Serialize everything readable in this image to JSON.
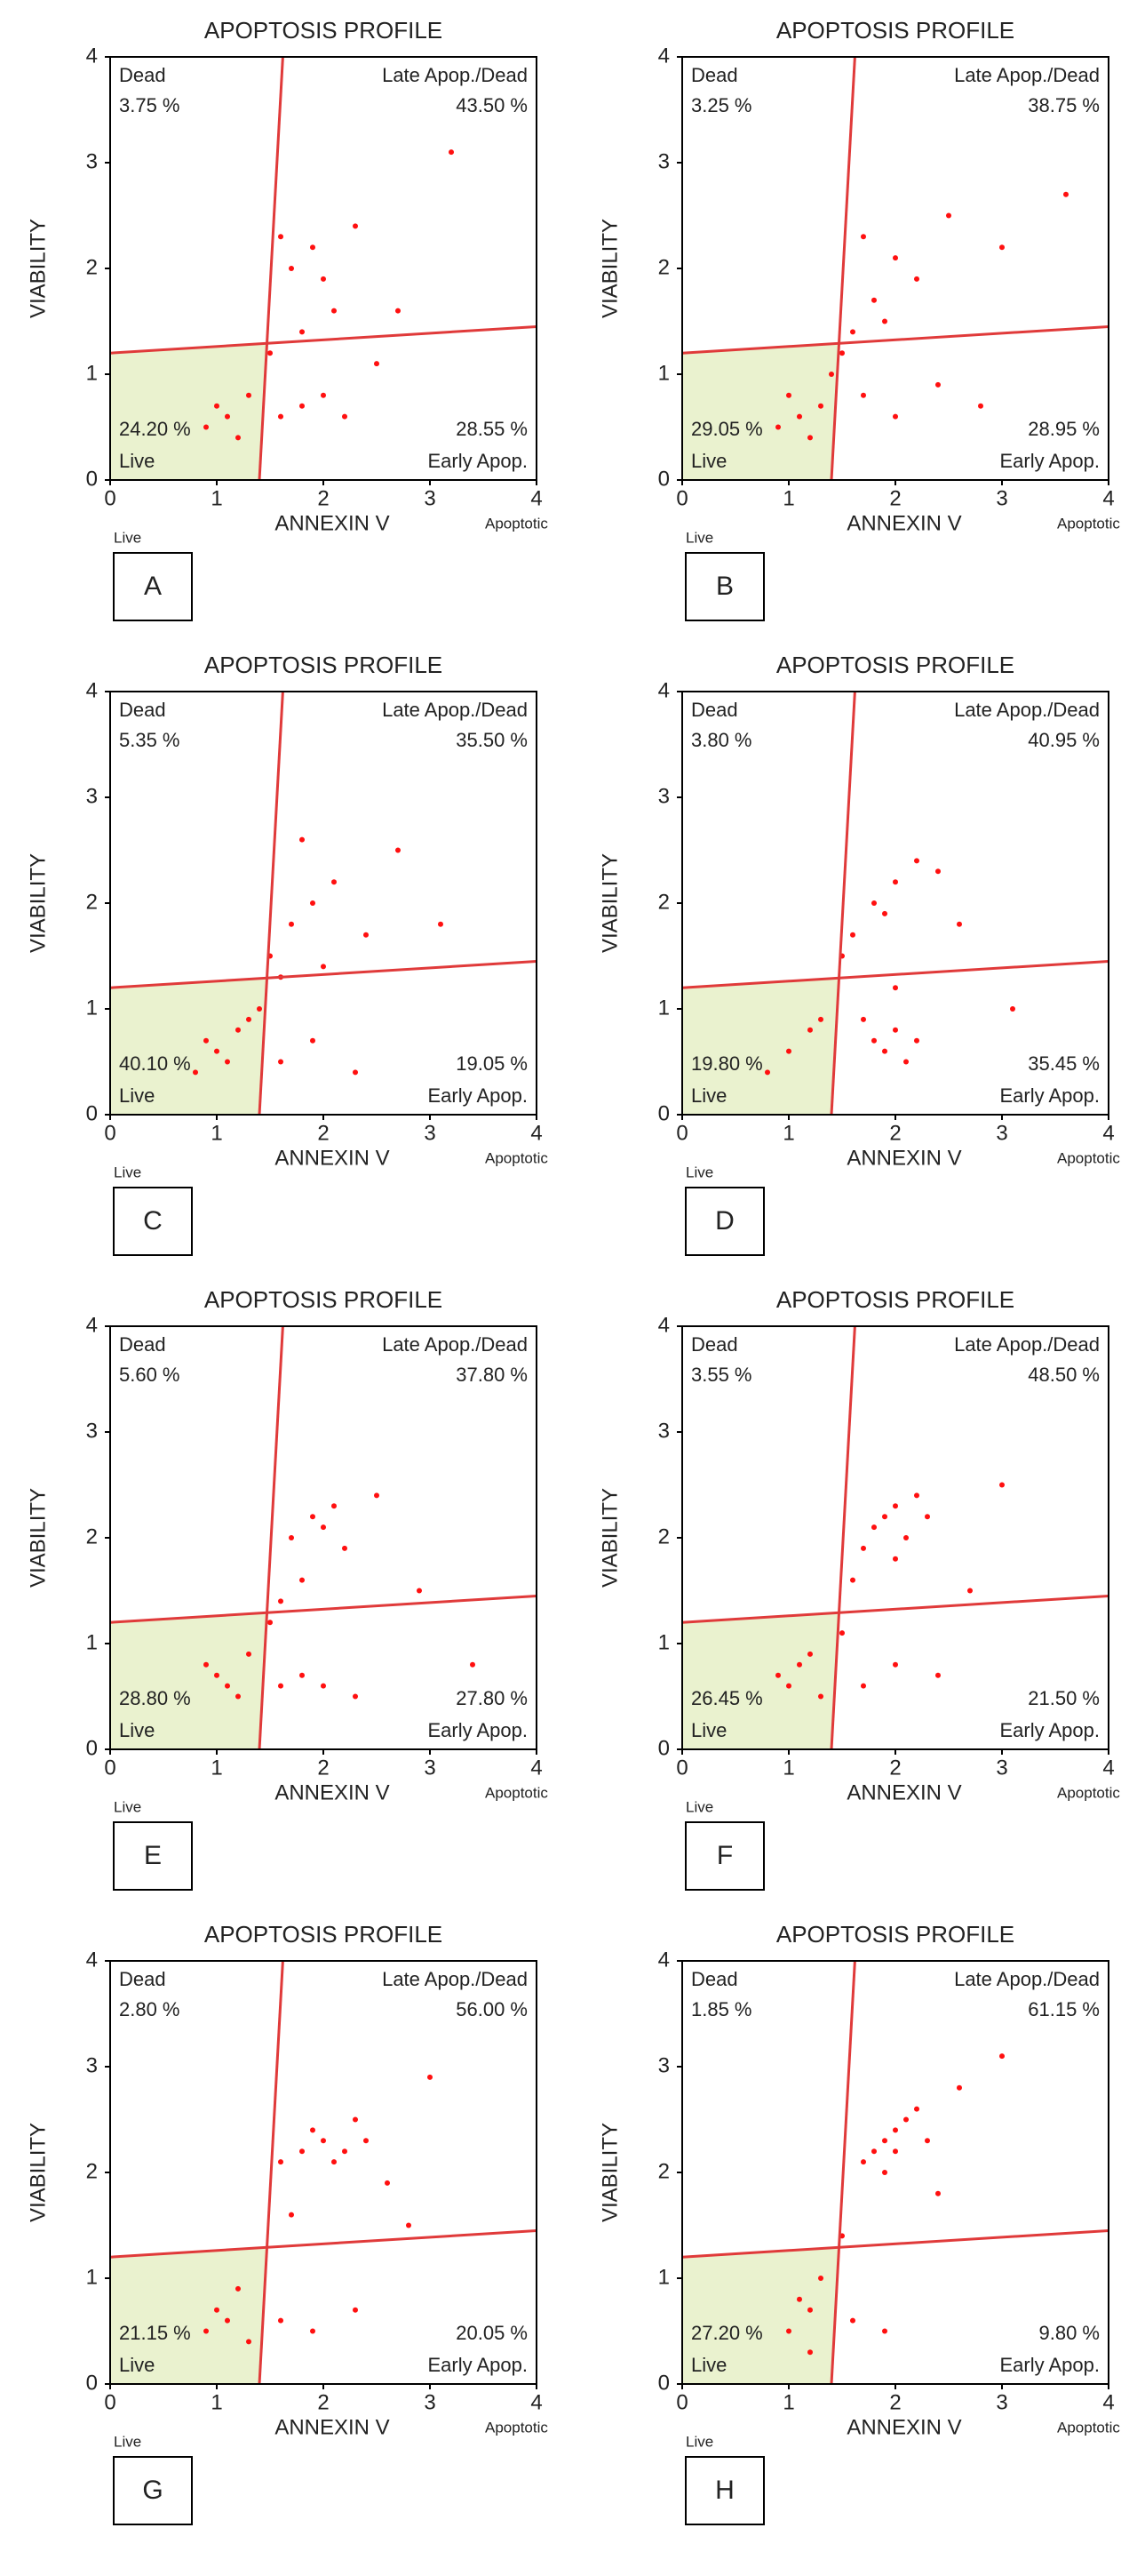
{
  "chart_data": [
    {
      "type": "scatter",
      "title": "APOPTOSIS PROFILE",
      "xlabel": "ANNEXIN V",
      "ylabel": "VIABILITY",
      "x_sublabels": [
        "Live",
        "Apoptotic"
      ],
      "panel_label": "A",
      "xlim": [
        0,
        4
      ],
      "ylim": [
        0,
        4
      ],
      "xticks": [
        0,
        1,
        2,
        3,
        4
      ],
      "yticks": [
        0,
        1,
        2,
        3,
        4
      ],
      "color": "#ff1010",
      "v_gate": [
        1.4,
        1.62
      ],
      "h_gate": [
        1.2,
        1.45
      ],
      "quadrants": [
        {
          "name": "Dead",
          "value": 3.75,
          "value_label": "3.75 %"
        },
        {
          "name": "Late Apop./Dead",
          "value": 43.5,
          "value_label": "43.50 %"
        },
        {
          "name": "Live",
          "value": 24.2,
          "value_label": "24.20 %"
        },
        {
          "name": "Early Apop.",
          "value": 28.55,
          "value_label": "28.55 %"
        }
      ],
      "x": [
        1.1,
        1.2,
        1.0,
        1.3,
        0.9,
        1.6,
        1.8,
        2.0,
        2.2,
        1.7,
        1.9,
        2.1,
        2.3,
        1.8,
        2.0,
        1.6,
        2.5,
        2.7,
        1.5,
        3.2
      ],
      "y": [
        0.6,
        0.4,
        0.7,
        0.8,
        0.5,
        0.6,
        0.7,
        0.8,
        0.6,
        2.0,
        2.2,
        1.6,
        2.4,
        1.4,
        1.9,
        2.3,
        1.1,
        1.6,
        1.2,
        3.1
      ]
    },
    {
      "type": "scatter",
      "title": "APOPTOSIS PROFILE",
      "xlabel": "ANNEXIN V",
      "ylabel": "VIABILITY",
      "x_sublabels": [
        "Live",
        "Apoptotic"
      ],
      "panel_label": "B",
      "xlim": [
        0,
        4
      ],
      "ylim": [
        0,
        4
      ],
      "xticks": [
        0,
        1,
        2,
        3,
        4
      ],
      "yticks": [
        0,
        1,
        2,
        3,
        4
      ],
      "color": "#ff1010",
      "v_gate": [
        1.4,
        1.62
      ],
      "h_gate": [
        1.2,
        1.45
      ],
      "quadrants": [
        {
          "name": "Dead",
          "value": 3.25,
          "value_label": "3.25 %"
        },
        {
          "name": "Late Apop./Dead",
          "value": 38.75,
          "value_label": "38.75 %"
        },
        {
          "name": "Live",
          "value": 29.05,
          "value_label": "29.05 %"
        },
        {
          "name": "Early Apop.",
          "value": 28.95,
          "value_label": "28.95 %"
        }
      ],
      "x": [
        1.1,
        1.2,
        1.0,
        1.3,
        0.9,
        1.7,
        2.0,
        2.4,
        2.8,
        1.6,
        1.8,
        2.0,
        1.7,
        1.9,
        2.2,
        2.5,
        1.5,
        3.0,
        1.4,
        3.6
      ],
      "y": [
        0.6,
        0.4,
        0.8,
        0.7,
        0.5,
        0.8,
        0.6,
        0.9,
        0.7,
        1.4,
        1.7,
        2.1,
        2.3,
        1.5,
        1.9,
        2.5,
        1.2,
        2.2,
        1.0,
        2.7
      ]
    },
    {
      "type": "scatter",
      "title": "APOPTOSIS PROFILE",
      "xlabel": "ANNEXIN V",
      "ylabel": "VIABILITY",
      "x_sublabels": [
        "Live",
        "Apoptotic"
      ],
      "panel_label": "C",
      "xlim": [
        0,
        4
      ],
      "ylim": [
        0,
        4
      ],
      "xticks": [
        0,
        1,
        2,
        3,
        4
      ],
      "yticks": [
        0,
        1,
        2,
        3,
        4
      ],
      "color": "#ff1010",
      "v_gate": [
        1.4,
        1.62
      ],
      "h_gate": [
        1.2,
        1.45
      ],
      "quadrants": [
        {
          "name": "Dead",
          "value": 5.35,
          "value_label": "5.35 %"
        },
        {
          "name": "Late Apop./Dead",
          "value": 35.5,
          "value_label": "35.50 %"
        },
        {
          "name": "Live",
          "value": 40.1,
          "value_label": "40.10 %"
        },
        {
          "name": "Early Apop.",
          "value": 19.05,
          "value_label": "19.05 %"
        }
      ],
      "x": [
        1.0,
        1.1,
        0.9,
        1.2,
        0.8,
        1.3,
        1.6,
        1.9,
        2.3,
        1.5,
        1.7,
        1.9,
        2.1,
        1.6,
        2.4,
        2.7,
        1.4,
        1.8,
        2.0,
        3.1
      ],
      "y": [
        0.6,
        0.5,
        0.7,
        0.8,
        0.4,
        0.9,
        0.5,
        0.7,
        0.4,
        1.5,
        1.8,
        2.0,
        2.2,
        1.3,
        1.7,
        2.5,
        1.0,
        2.6,
        1.4,
        1.8
      ]
    },
    {
      "type": "scatter",
      "title": "APOPTOSIS PROFILE",
      "xlabel": "ANNEXIN V",
      "ylabel": "VIABILITY",
      "x_sublabels": [
        "Live",
        "Apoptotic"
      ],
      "panel_label": "D",
      "xlim": [
        0,
        4
      ],
      "ylim": [
        0,
        4
      ],
      "xticks": [
        0,
        1,
        2,
        3,
        4
      ],
      "yticks": [
        0,
        1,
        2,
        3,
        4
      ],
      "color": "#ff1010",
      "v_gate": [
        1.4,
        1.62
      ],
      "h_gate": [
        1.2,
        1.45
      ],
      "quadrants": [
        {
          "name": "Dead",
          "value": 3.8,
          "value_label": "3.80 %"
        },
        {
          "name": "Late Apop./Dead",
          "value": 40.95,
          "value_label": "40.95 %"
        },
        {
          "name": "Live",
          "value": 19.8,
          "value_label": "19.80 %"
        },
        {
          "name": "Early Apop.",
          "value": 35.45,
          "value_label": "35.45 %"
        }
      ],
      "x": [
        1.0,
        1.2,
        0.8,
        1.3,
        1.8,
        1.9,
        2.0,
        2.1,
        2.2,
        1.7,
        2.0,
        1.6,
        1.8,
        2.0,
        2.2,
        2.4,
        1.5,
        2.6,
        1.9,
        3.1
      ],
      "y": [
        0.6,
        0.8,
        0.4,
        0.9,
        0.7,
        0.6,
        0.8,
        0.5,
        0.7,
        0.9,
        1.2,
        1.7,
        2.0,
        2.2,
        2.4,
        2.3,
        1.5,
        1.8,
        1.9,
        1.0
      ]
    },
    {
      "type": "scatter",
      "title": "APOPTOSIS PROFILE",
      "xlabel": "ANNEXIN V",
      "ylabel": "VIABILITY",
      "x_sublabels": [
        "Live",
        "Apoptotic"
      ],
      "panel_label": "E",
      "xlim": [
        0,
        4
      ],
      "ylim": [
        0,
        4
      ],
      "xticks": [
        0,
        1,
        2,
        3,
        4
      ],
      "yticks": [
        0,
        1,
        2,
        3,
        4
      ],
      "color": "#ff1010",
      "v_gate": [
        1.4,
        1.62
      ],
      "h_gate": [
        1.2,
        1.45
      ],
      "quadrants": [
        {
          "name": "Dead",
          "value": 5.6,
          "value_label": "5.60 %"
        },
        {
          "name": "Late Apop./Dead",
          "value": 37.8,
          "value_label": "37.80 %"
        },
        {
          "name": "Live",
          "value": 28.8,
          "value_label": "28.80 %"
        },
        {
          "name": "Early Apop.",
          "value": 27.8,
          "value_label": "27.80 %"
        }
      ],
      "x": [
        1.0,
        1.1,
        0.9,
        1.2,
        1.3,
        1.6,
        1.8,
        2.0,
        2.3,
        1.7,
        1.9,
        2.1,
        2.2,
        1.8,
        2.0,
        1.6,
        2.5,
        2.9,
        1.5,
        3.4
      ],
      "y": [
        0.7,
        0.6,
        0.8,
        0.5,
        0.9,
        0.6,
        0.7,
        0.6,
        0.5,
        2.0,
        2.2,
        2.3,
        1.9,
        1.6,
        2.1,
        1.4,
        2.4,
        1.5,
        1.2,
        0.8
      ]
    },
    {
      "type": "scatter",
      "title": "APOPTOSIS PROFILE",
      "xlabel": "ANNEXIN V",
      "ylabel": "VIABILITY",
      "x_sublabels": [
        "Live",
        "Apoptotic"
      ],
      "panel_label": "F",
      "xlim": [
        0,
        4
      ],
      "ylim": [
        0,
        4
      ],
      "xticks": [
        0,
        1,
        2,
        3,
        4
      ],
      "yticks": [
        0,
        1,
        2,
        3,
        4
      ],
      "color": "#ff1010",
      "v_gate": [
        1.4,
        1.62
      ],
      "h_gate": [
        1.2,
        1.45
      ],
      "quadrants": [
        {
          "name": "Dead",
          "value": 3.55,
          "value_label": "3.55 %"
        },
        {
          "name": "Late Apop./Dead",
          "value": 48.5,
          "value_label": "48.50 %"
        },
        {
          "name": "Live",
          "value": 26.45,
          "value_label": "26.45 %"
        },
        {
          "name": "Early Apop.",
          "value": 21.5,
          "value_label": "21.50 %"
        }
      ],
      "x": [
        0.9,
        1.1,
        1.0,
        1.2,
        1.3,
        1.7,
        2.0,
        2.4,
        1.7,
        1.8,
        1.9,
        2.0,
        2.1,
        2.2,
        2.3,
        1.6,
        2.0,
        2.7,
        3.0,
        1.5
      ],
      "y": [
        0.7,
        0.8,
        0.6,
        0.9,
        0.5,
        0.6,
        0.8,
        0.7,
        1.9,
        2.1,
        2.2,
        2.3,
        2.0,
        2.4,
        2.2,
        1.6,
        1.8,
        1.5,
        2.5,
        1.1
      ]
    },
    {
      "type": "scatter",
      "title": "APOPTOSIS PROFILE",
      "xlabel": "ANNEXIN V",
      "ylabel": "VIABILITY",
      "x_sublabels": [
        "Live",
        "Apoptotic"
      ],
      "panel_label": "G",
      "xlim": [
        0,
        4
      ],
      "ylim": [
        0,
        4
      ],
      "xticks": [
        0,
        1,
        2,
        3,
        4
      ],
      "yticks": [
        0,
        1,
        2,
        3,
        4
      ],
      "color": "#ff1010",
      "v_gate": [
        1.4,
        1.62
      ],
      "h_gate": [
        1.2,
        1.45
      ],
      "quadrants": [
        {
          "name": "Dead",
          "value": 2.8,
          "value_label": "2.80 %"
        },
        {
          "name": "Late Apop./Dead",
          "value": 56.0,
          "value_label": "56.00 %"
        },
        {
          "name": "Live",
          "value": 21.15,
          "value_label": "21.15 %"
        },
        {
          "name": "Early Apop.",
          "value": 20.05,
          "value_label": "20.05 %"
        }
      ],
      "x": [
        1.0,
        1.1,
        1.2,
        0.9,
        1.3,
        1.6,
        1.9,
        2.3,
        1.6,
        1.8,
        1.9,
        2.0,
        2.1,
        2.2,
        2.3,
        2.4,
        1.7,
        2.6,
        2.8,
        3.0
      ],
      "y": [
        0.7,
        0.6,
        0.9,
        0.5,
        0.4,
        0.6,
        0.5,
        0.7,
        2.1,
        2.2,
        2.4,
        2.3,
        2.1,
        2.2,
        2.5,
        2.3,
        1.6,
        1.9,
        1.5,
        2.9
      ]
    },
    {
      "type": "scatter",
      "title": "APOPTOSIS PROFILE",
      "xlabel": "ANNEXIN V",
      "ylabel": "VIABILITY",
      "x_sublabels": [
        "Live",
        "Apoptotic"
      ],
      "panel_label": "H",
      "xlim": [
        0,
        4
      ],
      "ylim": [
        0,
        4
      ],
      "xticks": [
        0,
        1,
        2,
        3,
        4
      ],
      "yticks": [
        0,
        1,
        2,
        3,
        4
      ],
      "color": "#ff1010",
      "v_gate": [
        1.4,
        1.62
      ],
      "h_gate": [
        1.2,
        1.45
      ],
      "quadrants": [
        {
          "name": "Dead",
          "value": 1.85,
          "value_label": "1.85 %"
        },
        {
          "name": "Late Apop./Dead",
          "value": 61.15,
          "value_label": "61.15 %"
        },
        {
          "name": "Live",
          "value": 27.2,
          "value_label": "27.20 %"
        },
        {
          "name": "Early Apop.",
          "value": 9.8,
          "value_label": "9.80 %"
        }
      ],
      "x": [
        1.1,
        1.2,
        1.3,
        1.0,
        1.2,
        1.6,
        1.9,
        1.7,
        1.8,
        1.9,
        2.0,
        2.1,
        2.2,
        2.3,
        1.9,
        2.0,
        2.4,
        2.6,
        3.0,
        1.5
      ],
      "y": [
        0.8,
        0.7,
        1.0,
        0.5,
        0.3,
        0.6,
        0.5,
        2.1,
        2.2,
        2.3,
        2.4,
        2.5,
        2.6,
        2.3,
        2.0,
        2.2,
        1.8,
        2.8,
        3.1,
        1.4
      ]
    }
  ]
}
